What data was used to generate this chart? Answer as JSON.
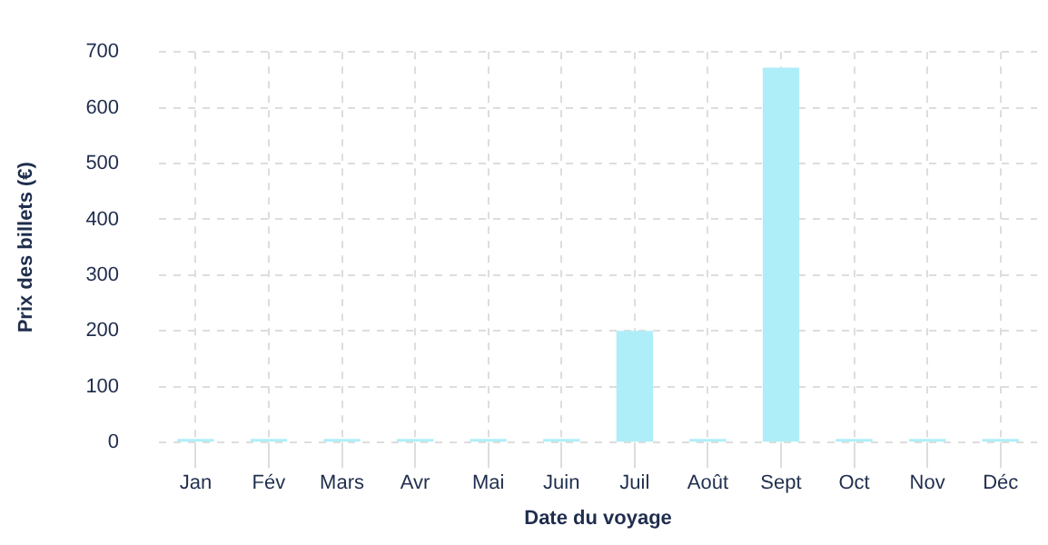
{
  "chart_data": {
    "type": "bar",
    "xlabel": "Date du voyage",
    "ylabel": "Prix des billets (€)",
    "categories": [
      "Jan",
      "Fév",
      "Mars",
      "Avr",
      "Mai",
      "Juin",
      "Juil",
      "Août",
      "Sept",
      "Oct",
      "Nov",
      "Déc"
    ],
    "values": [
      0,
      0,
      0,
      0,
      0,
      0,
      200,
      0,
      672,
      0,
      0,
      0
    ],
    "color": "#aeeef8",
    "ylim": [
      0,
      700
    ],
    "yticks": [
      0,
      100,
      200,
      300,
      400,
      500,
      600,
      700
    ],
    "grid": true,
    "legend": false
  }
}
